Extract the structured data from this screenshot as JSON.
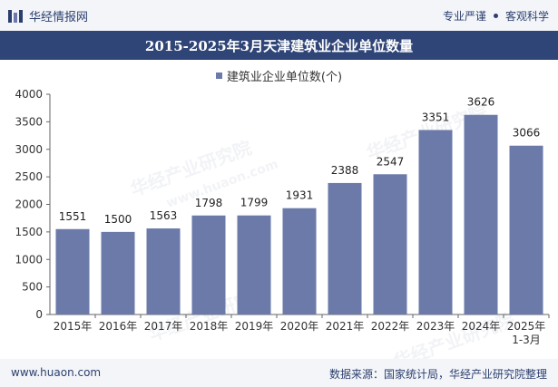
{
  "header": {
    "logo_text": "华经情报网",
    "tagline_left": "专业严谨",
    "tagline_right": "客观科学"
  },
  "footer": {
    "url": "www.huaon.com",
    "source": "数据来源：国家统计局，华经产业研究院整理"
  },
  "watermark": {
    "text": "华经产业研究院",
    "url": "www.huaon.com"
  },
  "colors": {
    "bar": "#6b7aa8",
    "title_bg": "#2f4577",
    "axis": "#555555"
  },
  "chart_data": {
    "type": "bar",
    "title": "2015-2025年3月天津建筑业企业单位数量",
    "legend": "建筑业企业单位数(个)",
    "categories": [
      "2015年",
      "2016年",
      "2017年",
      "2018年",
      "2019年",
      "2020年",
      "2021年",
      "2022年",
      "2023年",
      "2024年",
      "2025年\n1-3月"
    ],
    "values": [
      1551,
      1500,
      1563,
      1798,
      1799,
      1931,
      2388,
      2547,
      3351,
      3626,
      3066
    ],
    "ylim": [
      0,
      4000
    ],
    "yticks": [
      0,
      500,
      1000,
      1500,
      2000,
      2500,
      3000,
      3500,
      4000
    ],
    "xlabel": "",
    "ylabel": ""
  }
}
